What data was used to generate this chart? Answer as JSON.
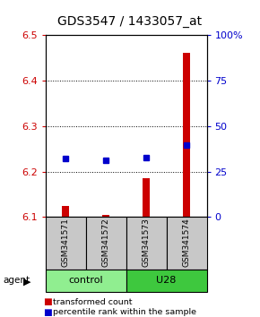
{
  "title": "GDS3547 / 1433057_at",
  "samples": [
    "GSM341571",
    "GSM341572",
    "GSM341573",
    "GSM341574"
  ],
  "groups": [
    "control",
    "control",
    "U28",
    "U28"
  ],
  "group_labels": [
    "control",
    "U28"
  ],
  "group_colors_light": "#90ee90",
  "group_colors_dark": "#3ec83e",
  "bar_values": [
    6.125,
    6.105,
    6.185,
    6.46
  ],
  "bar_base": 6.1,
  "dot_values": [
    6.228,
    6.224,
    6.23,
    6.258
  ],
  "ylim": [
    6.1,
    6.5
  ],
  "y2lim": [
    0,
    100
  ],
  "yticks": [
    6.1,
    6.2,
    6.3,
    6.4,
    6.5
  ],
  "y2ticks": [
    0,
    25,
    50,
    75,
    100
  ],
  "bar_color": "#cc0000",
  "dot_color": "#0000cc",
  "legend_items": [
    "transformed count",
    "percentile rank within the sample"
  ],
  "legend_colors": [
    "#cc0000",
    "#0000cc"
  ],
  "title_fontsize": 10,
  "label_gray": "#c8c8c8"
}
